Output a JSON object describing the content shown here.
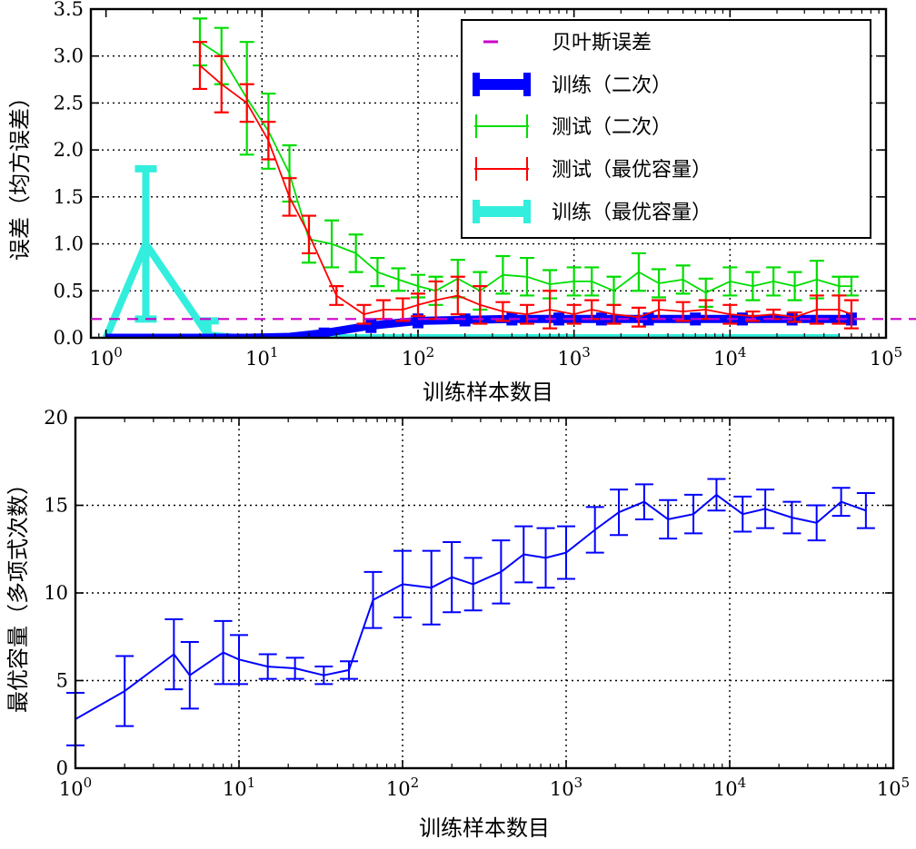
{
  "chart_data": [
    {
      "type": "line",
      "xscale": "log",
      "xlim": [
        0.8,
        100000
      ],
      "ylim": [
        0.0,
        3.5
      ],
      "xlabel": "训练样本数目",
      "ylabel": "误差（均方误差）",
      "x_ticks": [
        "10^0",
        "10^1",
        "10^2",
        "10^3",
        "10^4",
        "10^5"
      ],
      "y_ticks": [
        "0.0",
        "0.5",
        "1.0",
        "1.5",
        "2.0",
        "2.5",
        "3.0",
        "3.5"
      ],
      "grid": true,
      "legend_position": "top-right",
      "legend": [
        {
          "label": "贝叶斯误差",
          "color": "#cc00cc",
          "style": "dashed"
        },
        {
          "label": "训练（二次）",
          "color": "#0000ff",
          "style": "thick-errorbar"
        },
        {
          "label": "测试（二次）",
          "color": "#00dd00",
          "style": "errorbar"
        },
        {
          "label": "测试（最优容量）",
          "color": "#ff0000",
          "style": "errorbar"
        },
        {
          "label": "训练（最优容量）",
          "color": "#33eedd",
          "style": "thick-errorbar"
        }
      ],
      "series": [
        {
          "name": "贝叶斯误差",
          "color": "#cc00cc",
          "x": [
            0.8,
            100000
          ],
          "y": [
            0.2,
            0.2
          ]
        },
        {
          "name": "训练（二次）",
          "color": "#0000ff",
          "x": [
            1,
            2,
            4,
            8,
            15,
            25,
            50,
            100,
            200,
            400,
            800,
            1500,
            3000,
            6000,
            12000,
            25000,
            60000
          ],
          "y": [
            0,
            0,
            0,
            0,
            0.01,
            0.05,
            0.13,
            0.18,
            0.19,
            0.2,
            0.2,
            0.2,
            0.2,
            0.2,
            0.2,
            0.2,
            0.2
          ],
          "err": [
            0,
            0,
            0,
            0,
            0.01,
            0.03,
            0.05,
            0.05,
            0.04,
            0.04,
            0.04,
            0.04,
            0.04,
            0.04,
            0.04,
            0.04,
            0.04
          ]
        },
        {
          "name": "测试（二次）",
          "color": "#00dd00",
          "x": [
            4,
            5.5,
            8,
            11,
            15,
            20,
            28,
            40,
            55,
            75,
            100,
            130,
            180,
            250,
            350,
            500,
            700,
            1000,
            1300,
            1800,
            2600,
            3500,
            5000,
            7000,
            10000,
            14000,
            19000,
            26000,
            36000,
            50000,
            60000
          ],
          "y": [
            3.15,
            3.0,
            2.55,
            2.2,
            1.75,
            1.05,
            1.0,
            0.9,
            0.7,
            0.62,
            0.55,
            0.5,
            0.63,
            0.5,
            0.67,
            0.65,
            0.57,
            0.6,
            0.6,
            0.5,
            0.7,
            0.58,
            0.62,
            0.48,
            0.6,
            0.55,
            0.6,
            0.55,
            0.62,
            0.55,
            0.55
          ],
          "err": [
            0.25,
            0.3,
            0.6,
            0.4,
            0.3,
            0.25,
            0.25,
            0.2,
            0.15,
            0.12,
            0.12,
            0.15,
            0.2,
            0.2,
            0.2,
            0.2,
            0.15,
            0.15,
            0.15,
            0.15,
            0.2,
            0.15,
            0.15,
            0.15,
            0.15,
            0.15,
            0.15,
            0.15,
            0.2,
            0.1,
            0.1
          ]
        },
        {
          "name": "测试（最优容量）",
          "color": "#ff0000",
          "x": [
            4,
            5.5,
            8,
            11,
            15,
            20,
            30,
            45,
            60,
            80,
            100,
            130,
            180,
            250,
            350,
            500,
            700,
            1000,
            1300,
            1800,
            2600,
            3500,
            5000,
            7000,
            10000,
            14000,
            19000,
            26000,
            36000,
            50000,
            60000
          ],
          "y": [
            2.9,
            2.7,
            2.5,
            2.1,
            1.5,
            1.1,
            0.45,
            0.25,
            0.3,
            0.3,
            0.35,
            0.4,
            0.45,
            0.35,
            0.28,
            0.25,
            0.3,
            0.25,
            0.3,
            0.25,
            0.22,
            0.3,
            0.28,
            0.3,
            0.25,
            0.23,
            0.25,
            0.22,
            0.3,
            0.3,
            0.25
          ],
          "err": [
            0.25,
            0.3,
            0.2,
            0.2,
            0.2,
            0.2,
            0.1,
            0.1,
            0.1,
            0.12,
            0.12,
            0.2,
            0.2,
            0.2,
            0.1,
            0.1,
            0.2,
            0.1,
            0.1,
            0.1,
            0.1,
            0.1,
            0.1,
            0.1,
            0.1,
            0.05,
            0.05,
            0.05,
            0.15,
            0.15,
            0.15
          ]
        },
        {
          "name": "训练（最优容量）",
          "color": "#33eedd",
          "x": [
            1,
            1.8,
            4.5,
            7,
            10,
            20,
            50,
            100,
            200,
            500,
            1000,
            5000,
            50000
          ],
          "y": [
            0,
            1.0,
            0.03,
            0,
            0,
            0,
            0,
            0,
            0,
            0,
            0,
            0,
            0
          ],
          "err": [
            0,
            0.8,
            0.15,
            0,
            0,
            0,
            0,
            0,
            0,
            0,
            0,
            0,
            0
          ]
        }
      ]
    },
    {
      "type": "line",
      "xscale": "log",
      "xlim": [
        1,
        100000
      ],
      "ylim": [
        0,
        20
      ],
      "xlabel": "训练样本数目",
      "ylabel": "最优容量（多项式次数）",
      "x_ticks": [
        "10^0",
        "10^1",
        "10^2",
        "10^3",
        "10^4",
        "10^5"
      ],
      "y_ticks": [
        "0",
        "5",
        "10",
        "15",
        "20"
      ],
      "grid": true,
      "series": [
        {
          "color": "#0000ff",
          "x": [
            1,
            2,
            4,
            5,
            8,
            10,
            15,
            22,
            33,
            47,
            66,
            100,
            150,
            200,
            270,
            400,
            550,
            750,
            1000,
            1500,
            2100,
            3000,
            4200,
            6000,
            8300,
            12000,
            16500,
            24000,
            34000,
            48000,
            68000
          ],
          "y": [
            2.8,
            4.4,
            6.5,
            5.3,
            6.6,
            6.2,
            5.8,
            5.7,
            5.3,
            5.6,
            9.6,
            10.5,
            10.3,
            10.9,
            10.5,
            11.2,
            12.2,
            12.0,
            12.3,
            13.6,
            14.6,
            15.2,
            14.2,
            14.5,
            15.6,
            14.5,
            14.8,
            14.3,
            14.0,
            15.2,
            14.7
          ],
          "err": [
            1.5,
            2.0,
            2.0,
            1.9,
            1.8,
            1.4,
            0.7,
            0.6,
            0.5,
            0.5,
            1.6,
            1.9,
            2.1,
            2.0,
            1.5,
            1.8,
            1.6,
            1.7,
            1.5,
            1.3,
            1.3,
            1.0,
            1.1,
            1.1,
            0.9,
            1.0,
            1.1,
            0.9,
            1.0,
            0.8,
            1.0
          ]
        }
      ]
    }
  ]
}
